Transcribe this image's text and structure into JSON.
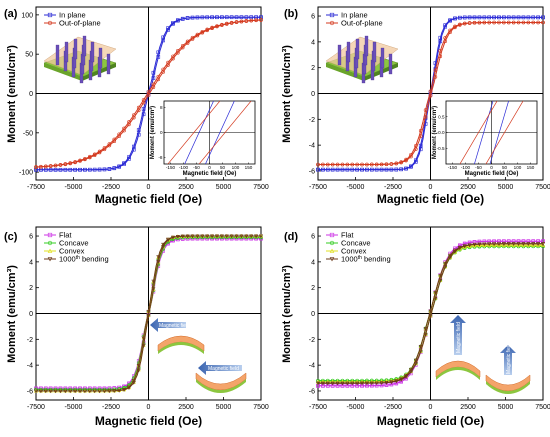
{
  "chart_data": [
    {
      "id": "a",
      "panel_label": "(a)",
      "type": "line",
      "xlabel": "Magnetic field (Oe)",
      "ylabel": "Moment (emu/cm³)",
      "xlim": [
        -7500,
        7500
      ],
      "ylim": [
        -110,
        110
      ],
      "xticks": [
        -7500,
        -5000,
        -2500,
        0,
        2500,
        5000,
        7500
      ],
      "yticks": [
        -100,
        -50,
        0,
        50,
        100
      ],
      "xtick_labels": [
        "-7500",
        "-5000",
        "-2500",
        "0",
        "2500",
        "5000",
        "7500"
      ],
      "ytick_labels": [
        "-100",
        "-50",
        "0",
        "50",
        "100"
      ],
      "legend": {
        "position": "top-left",
        "entries": [
          "In plane",
          "Out-of-plane"
        ]
      },
      "series": [
        {
          "name": "In plane",
          "color": "#2b2bd6",
          "marker": "square",
          "ms": 97,
          "hc": 40,
          "h0": 950,
          "p": 1.3
        },
        {
          "name": "Out-of-plane",
          "color": "#d43a1f",
          "marker": "circle",
          "ms": 95,
          "hc": 60,
          "h0": 3100,
          "p": 1.0
        }
      ],
      "inset": {
        "xlabel": "Magnetic field (Oe)",
        "ylabel": "Moment (emu/cm³)",
        "xlim": [
          -175,
          175
        ],
        "ylim": [
          -10,
          10
        ],
        "xticks": [
          -150,
          -100,
          -50,
          0,
          50,
          100,
          150
        ],
        "xtick_labels": [
          "-150",
          "-100",
          "-50",
          "0",
          "50",
          "100",
          "150"
        ],
        "yticks": [
          -8,
          0,
          8
        ],
        "ytick_labels": [
          "-8",
          "0",
          "8"
        ],
        "lines": [
          {
            "color": "#2b2bd6",
            "hc": 40,
            "slope": 0.18
          },
          {
            "color": "#d43a1f",
            "hc": 60,
            "slope": 0.1
          }
        ]
      },
      "sketch": "pillars"
    },
    {
      "id": "b",
      "panel_label": "(b)",
      "type": "line",
      "xlabel": "Magnetic field (Oe)",
      "ylabel": "Moment (emu/cm³)",
      "xlim": [
        -7500,
        7500
      ],
      "ylim": [
        -6.7,
        6.7
      ],
      "xticks": [
        -7500,
        -5000,
        -2500,
        0,
        2500,
        5000,
        7500
      ],
      "yticks": [
        -6,
        -4,
        -2,
        0,
        2,
        4,
        6
      ],
      "xtick_labels": [
        "-7500",
        "-5000",
        "-2500",
        "0",
        "2500",
        "5000",
        "7500"
      ],
      "ytick_labels": [
        "-6",
        "-4",
        "-2",
        "0",
        "2",
        "4",
        "6"
      ],
      "legend": {
        "position": "top-left",
        "entries": [
          "In plane",
          "Out-of-plane"
        ]
      },
      "series": [
        {
          "name": "In plane",
          "color": "#2b2bd6",
          "marker": "square",
          "ms": 5.9,
          "hc": 30,
          "h0": 620,
          "p": 1.4
        },
        {
          "name": "Out-of-plane",
          "color": "#d43a1f",
          "marker": "circle",
          "ms": 5.5,
          "hc": 50,
          "h0": 900,
          "p": 1.2
        }
      ],
      "inset": {
        "xlabel": "Magnetic field (Oe)",
        "ylabel": "Moment (emu/cm³)",
        "xlim": [
          -175,
          175
        ],
        "ylim": [
          -1,
          1
        ],
        "xticks": [
          -150,
          -100,
          -50,
          0,
          50,
          100,
          150
        ],
        "xtick_labels": [
          "-150",
          "-100",
          "-50",
          "0",
          "50",
          "100",
          "150"
        ],
        "yticks": [
          -0.5,
          0,
          0.5
        ],
        "ytick_labels": [
          "-0.5",
          "0.0",
          "0.5"
        ],
        "lines": [
          {
            "color": "#2b2bd6",
            "hc": 30,
            "slope": 0.028
          },
          {
            "color": "#d43a1f",
            "hc": 50,
            "slope": 0.014
          }
        ]
      },
      "sketch": "pillars"
    },
    {
      "id": "c",
      "panel_label": "(c)",
      "type": "line",
      "xlabel": "Magnetic field (Oe)",
      "ylabel": "Moment (emu/cm³)",
      "xlim": [
        -7500,
        7500
      ],
      "ylim": [
        -6.7,
        6.7
      ],
      "xticks": [
        -7500,
        -5000,
        -2500,
        0,
        2500,
        5000,
        7500
      ],
      "yticks": [
        -6,
        -4,
        -2,
        0,
        2,
        4,
        6
      ],
      "xtick_labels": [
        "-7500",
        "-5000",
        "-2500",
        "0",
        "2500",
        "5000",
        "7500"
      ],
      "ytick_labels": [
        "-6",
        "-4",
        "-2",
        "0",
        "2",
        "4",
        "6"
      ],
      "legend": {
        "position": "top-left",
        "entries": [
          "Flat",
          "Concave",
          "Convex",
          "1000",
          "th",
          " bending"
        ]
      },
      "series": [
        {
          "name": "Flat",
          "color": "#cc33e6",
          "marker": "square",
          "ms": 5.8,
          "hc": 40,
          "h0": 700,
          "p": 1.3
        },
        {
          "name": "Concave",
          "color": "#33cc22",
          "marker": "circle",
          "ms": 5.9,
          "hc": 40,
          "h0": 680,
          "p": 1.3
        },
        {
          "name": "Convex",
          "color": "#e0e020",
          "marker": "triangle",
          "ms": 6.0,
          "hc": 40,
          "h0": 660,
          "p": 1.3
        },
        {
          "name": "1000th bending",
          "color": "#6b3a1a",
          "marker": "triangle-down",
          "ms": 6.0,
          "hc": 40,
          "h0": 650,
          "p": 1.3
        }
      ],
      "annotations": [
        {
          "text": "Magnetic field",
          "kind": "arrow-left"
        },
        {
          "text": "Magnetic field",
          "kind": "arrow-left"
        }
      ],
      "sketch": "curved-horizontal"
    },
    {
      "id": "d",
      "panel_label": "(d)",
      "type": "line",
      "xlabel": "Magnetic field (Oe)",
      "ylabel": "Moment (emu/cm³)",
      "xlim": [
        -7500,
        7500
      ],
      "ylim": [
        -6.7,
        6.7
      ],
      "xticks": [
        -7500,
        -5000,
        -2500,
        0,
        2500,
        5000,
        7500
      ],
      "yticks": [
        -6,
        -4,
        -2,
        0,
        2,
        4,
        6
      ],
      "xtick_labels": [
        "-7500",
        "-5000",
        "-2500",
        "0",
        "2500",
        "5000",
        "7500"
      ],
      "ytick_labels": [
        "-6",
        "-4",
        "-2",
        "0",
        "2",
        "4",
        "6"
      ],
      "legend": {
        "position": "top-left",
        "entries": [
          "Flat",
          "Concave",
          "Convex",
          "1000",
          "th",
          " bending"
        ]
      },
      "series": [
        {
          "name": "Flat",
          "color": "#cc33e6",
          "marker": "square",
          "ms": 5.6,
          "hc": 50,
          "h0": 1100,
          "p": 1.1
        },
        {
          "name": "Concave",
          "color": "#33cc22",
          "marker": "circle",
          "ms": 5.2,
          "hc": 50,
          "h0": 1000,
          "p": 1.15
        },
        {
          "name": "Convex",
          "color": "#e0e020",
          "marker": "triangle",
          "ms": 5.3,
          "hc": 50,
          "h0": 1050,
          "p": 1.1
        },
        {
          "name": "1000th bending",
          "color": "#6b3a1a",
          "marker": "triangle-down",
          "ms": 5.4,
          "hc": 50,
          "h0": 1080,
          "p": 1.1
        }
      ],
      "annotations": [
        {
          "text": "Magnetic field",
          "kind": "arrow-up"
        },
        {
          "text": "Magnetic field",
          "kind": "arrow-up"
        }
      ],
      "sketch": "curved-vertical"
    }
  ]
}
